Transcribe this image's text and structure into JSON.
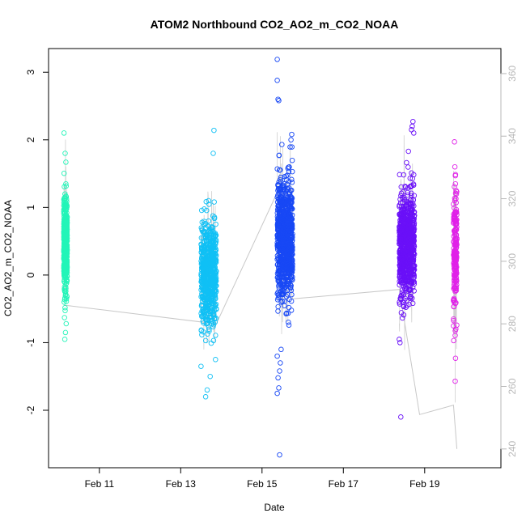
{
  "chart_data": {
    "type": "scatter",
    "title": "ATOM2 Northbound CO2_AO2_m_CO2_NOAA",
    "xlabel": "Date",
    "ylabel": "CO2_AO2_m_CO2_NOAA",
    "x_ticks": [
      {
        "value": "2017-02-11",
        "label": "Feb 11"
      },
      {
        "value": "2017-02-13",
        "label": "Feb 13"
      },
      {
        "value": "2017-02-15",
        "label": "Feb 15"
      },
      {
        "value": "2017-02-17",
        "label": "Feb 17"
      },
      {
        "value": "2017-02-19",
        "label": "Feb 19"
      }
    ],
    "xlim": [
      "2017-02-09T18:00",
      "2017-02-20T21:00"
    ],
    "ylim": [
      -2.85,
      3.35
    ],
    "y_ticks": [
      -2,
      -1,
      0,
      1,
      2,
      3
    ],
    "y2_ticks": [
      240,
      260,
      280,
      300,
      320,
      340,
      360
    ],
    "y2lim": [
      234,
      368
    ],
    "series": [
      {
        "color": "#22f5b8",
        "x_range": [
          "2017-02-10T03:00",
          "2017-02-10T05:00"
        ],
        "center": 0.48,
        "spread": 0.32,
        "n": 520,
        "extremes": [
          [
            0.055,
            2.1
          ],
          [
            0.4,
            1.8
          ],
          [
            0.6,
            1.67
          ],
          [
            0.3,
            -0.95
          ],
          [
            0.5,
            -0.85
          ],
          [
            0.2,
            -0.63
          ],
          [
            0.7,
            -0.72
          ],
          [
            0.1,
            -0.4
          ]
        ]
      },
      {
        "color": "#10c0f5",
        "x_range": [
          "2017-02-13T12:00",
          "2017-02-13T21:00"
        ],
        "center": 0.0,
        "spread": 0.38,
        "n": 650,
        "extremes": [
          [
            0.85,
            2.14
          ],
          [
            0.8,
            1.8
          ],
          [
            0.3,
            -1.8
          ],
          [
            0.4,
            -1.7
          ],
          [
            0.0,
            -1.35
          ],
          [
            0.6,
            -1.5
          ],
          [
            0.95,
            -1.25
          ],
          [
            0.5,
            1.1
          ]
        ]
      },
      {
        "color": "#1848f5",
        "x_range": [
          "2017-02-15T09:00",
          "2017-02-15T18:00"
        ],
        "center": 0.55,
        "spread": 0.42,
        "n": 900,
        "extremes": [
          [
            0.0,
            3.19
          ],
          [
            0.0,
            2.88
          ],
          [
            0.05,
            2.6
          ],
          [
            0.1,
            2.58
          ],
          [
            0.15,
            -2.66
          ],
          [
            0.0,
            -1.75
          ],
          [
            0.1,
            -1.67
          ],
          [
            0.05,
            -1.52
          ],
          [
            0.15,
            -1.42
          ],
          [
            0.2,
            -1.3
          ],
          [
            0.0,
            -1.2
          ],
          [
            0.25,
            -1.1
          ],
          [
            0.95,
            2.08
          ],
          [
            0.9,
            2.0
          ],
          [
            0.3,
            1.93
          ]
        ]
      },
      {
        "color": "#6a10f8",
        "x_range": [
          "2017-02-18T09:00",
          "2017-02-18T18:00"
        ],
        "center": 0.45,
        "spread": 0.38,
        "n": 800,
        "extremes": [
          [
            0.1,
            -2.1
          ],
          [
            0.9,
            2.27
          ],
          [
            0.85,
            2.2
          ],
          [
            0.8,
            2.15
          ],
          [
            0.95,
            2.1
          ],
          [
            0.0,
            -0.95
          ],
          [
            0.05,
            -1.0
          ],
          [
            0.6,
            1.83
          ]
        ]
      },
      {
        "color": "#e020e8",
        "x_range": [
          "2017-02-19T17:00",
          "2017-02-19T19:00"
        ],
        "center": 0.3,
        "spread": 0.42,
        "n": 200,
        "extremes": [
          [
            0.3,
            1.97
          ],
          [
            0.5,
            -1.57
          ],
          [
            0.6,
            -1.23
          ],
          [
            0.4,
            1.6
          ],
          [
            0.7,
            -0.8
          ]
        ]
      }
    ],
    "secondary_line": {
      "color": "#c8c8c8",
      "points": [
        [
          "2017-02-10T03:00",
          286
        ],
        [
          "2017-02-13T21:00",
          280
        ],
        [
          "2017-02-15T09:00",
          322
        ],
        [
          "2017-02-15T18:00",
          288
        ],
        [
          "2017-02-18T09:00",
          291
        ],
        [
          "2017-02-18T21:00",
          251
        ],
        [
          "2017-02-19T17:00",
          254
        ],
        [
          "2017-02-19T19:00",
          240
        ]
      ]
    }
  }
}
